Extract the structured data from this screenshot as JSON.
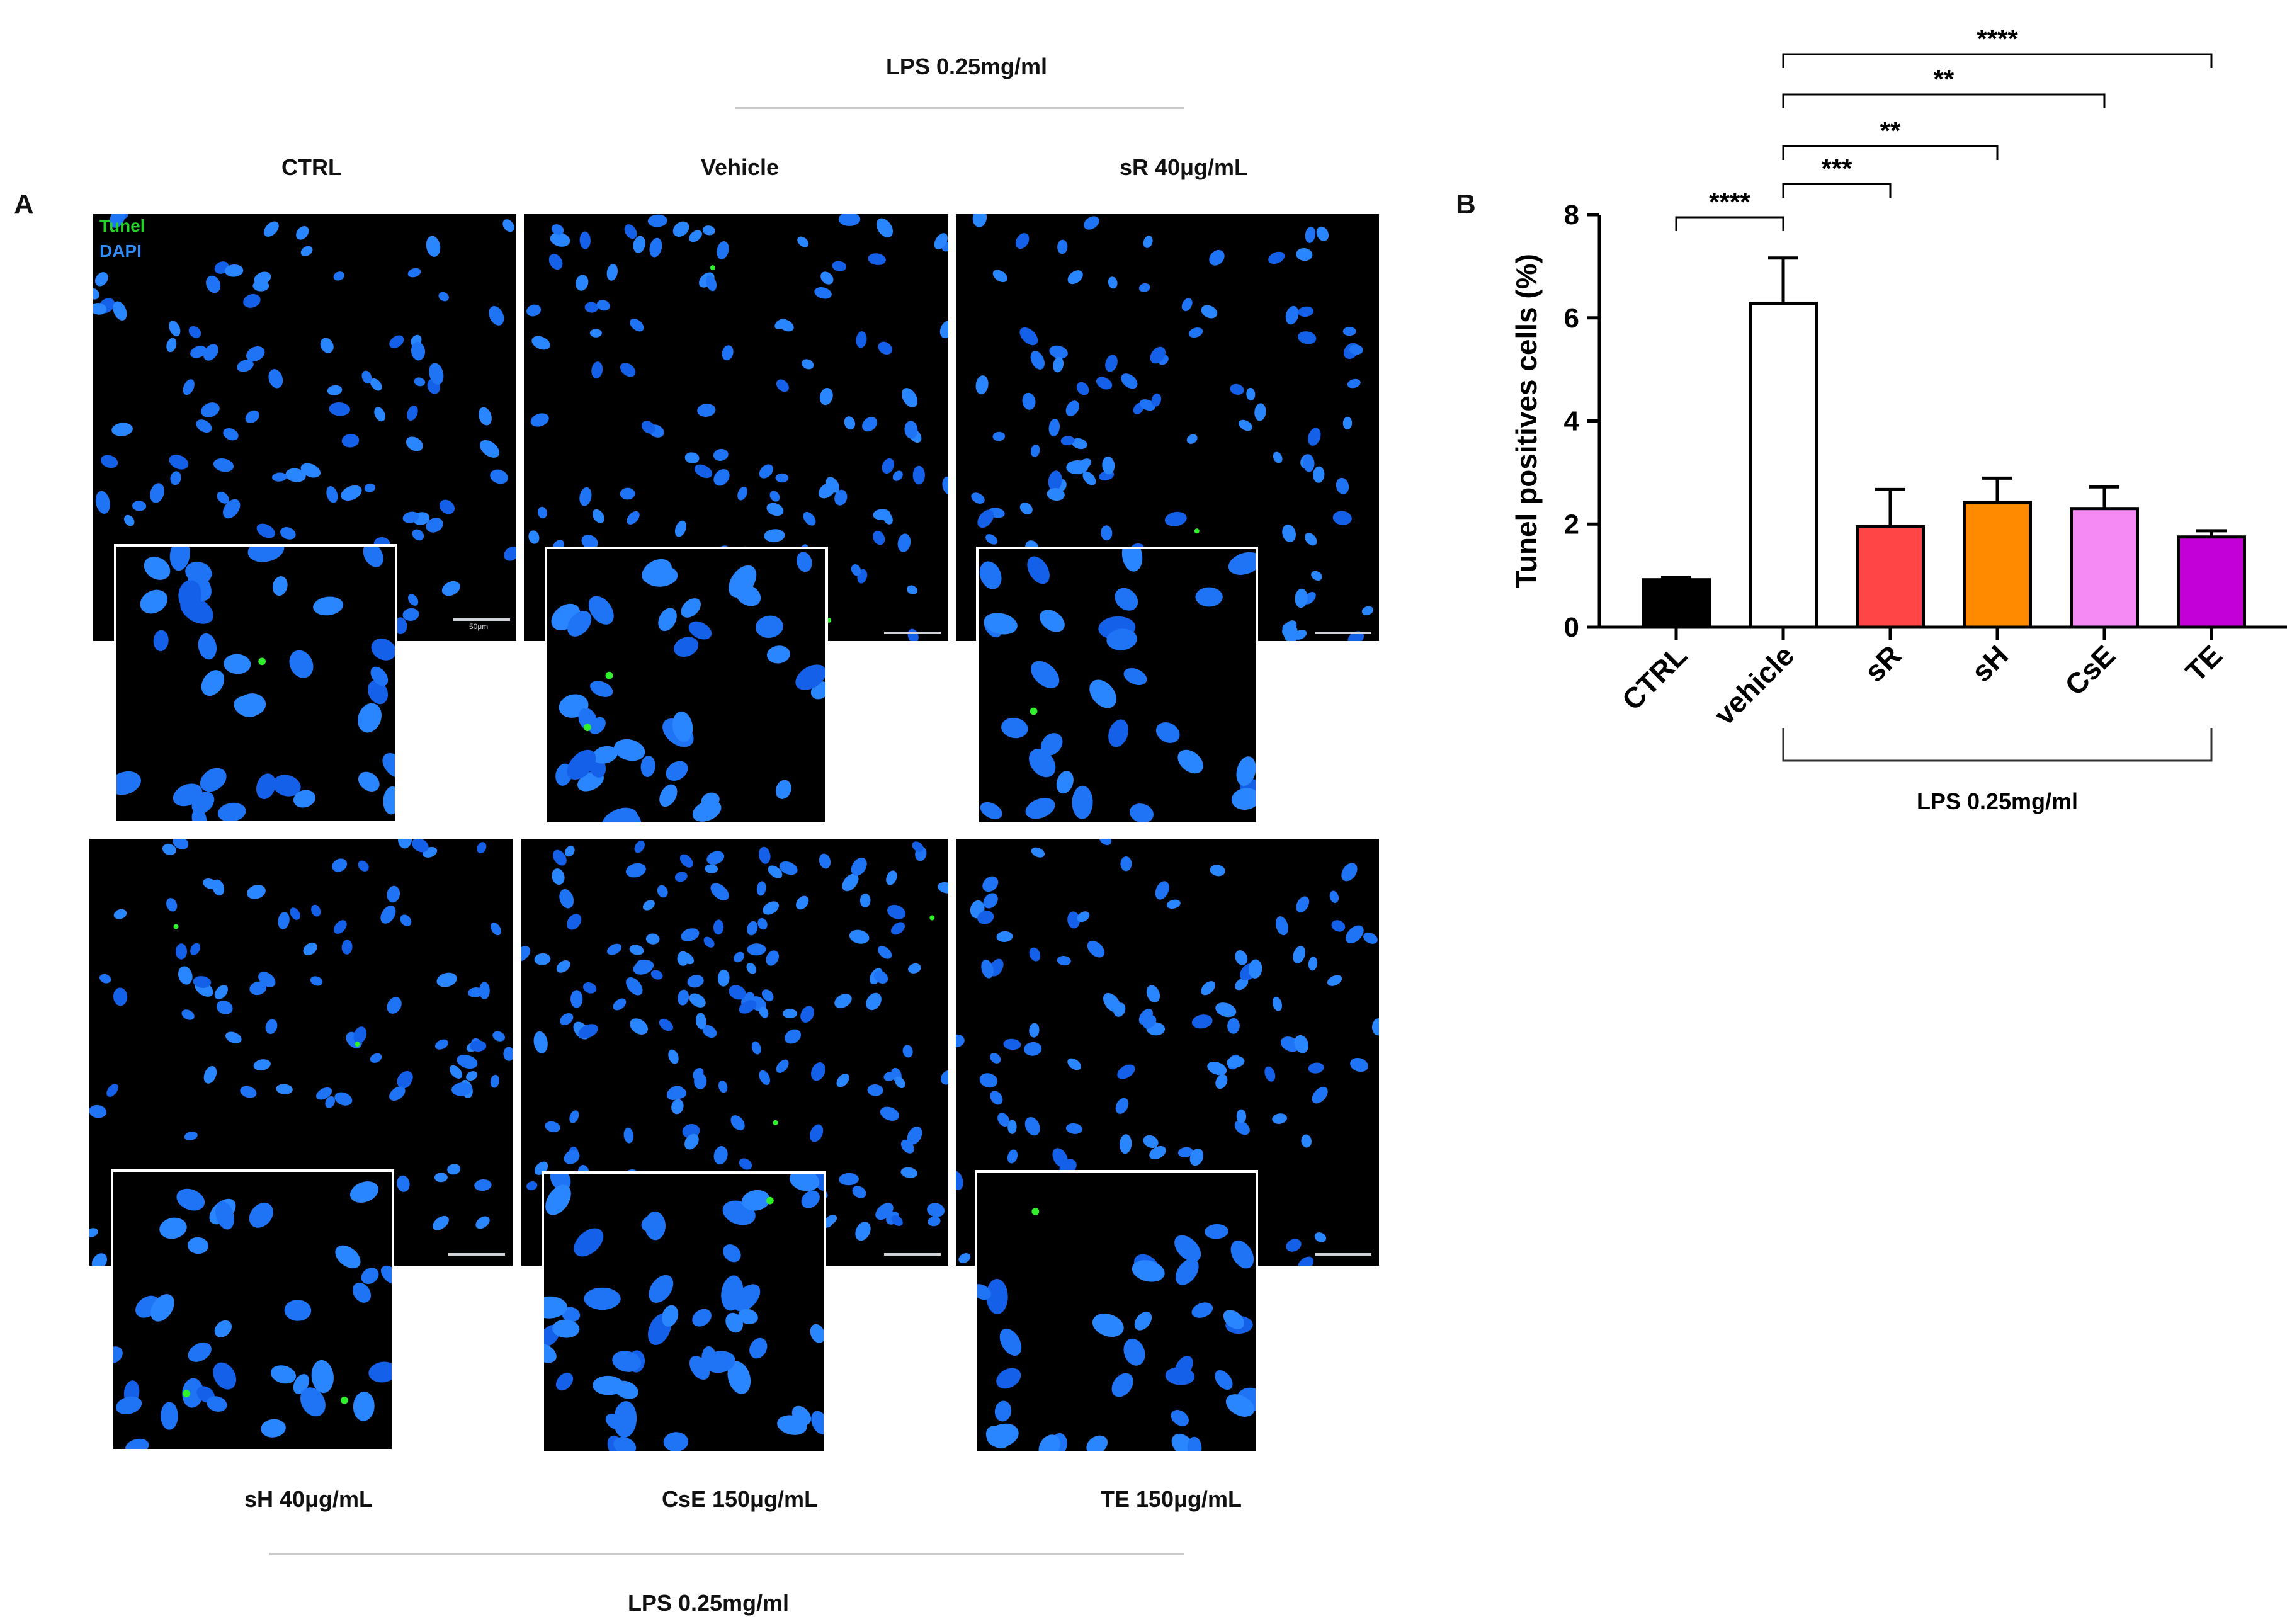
{
  "panelA": {
    "letter": "A",
    "top_group_label": "LPS 0.25mg/ml",
    "bottom_group_label": "LPS 0.25mg/ml",
    "legend": {
      "tunel": "Tunel",
      "dapi": "DAPI"
    },
    "scale_text": "50μm",
    "top_labels": [
      "CTRL",
      "Vehicle",
      "sR 40μg/mL"
    ],
    "bottom_labels": [
      "sH 40μg/mL",
      "CsE 150μg/mL",
      "TE 150μg/mL"
    ]
  },
  "panelB": {
    "letter": "B",
    "group_label": "LPS 0.25mg/ml"
  },
  "chart_data": {
    "type": "bar",
    "title": "",
    "xlabel": "",
    "ylabel": "Tunel positives cells (%)",
    "categories": [
      "CTRL",
      "vehicle",
      "sR",
      "sH",
      "CsE",
      "TE"
    ],
    "values": [
      0.92,
      6.28,
      1.95,
      2.42,
      2.3,
      1.75
    ],
    "errors": [
      0.05,
      0.88,
      0.72,
      0.47,
      0.42,
      0.12
    ],
    "colors": [
      "#000000",
      "#ffffff",
      "#ff4545",
      "#ff8a00",
      "#f58af5",
      "#c400d8"
    ],
    "ylim": [
      0,
      8
    ],
    "yticks": [
      0,
      2,
      4,
      6,
      8
    ],
    "significance": [
      {
        "from": "CTRL",
        "to": "vehicle",
        "label": "****"
      },
      {
        "from": "vehicle",
        "to": "sR",
        "label": "***"
      },
      {
        "from": "vehicle",
        "to": "sH",
        "label": "**"
      },
      {
        "from": "vehicle",
        "to": "CsE",
        "label": "**"
      },
      {
        "from": "vehicle",
        "to": "TE",
        "label": "****"
      }
    ]
  }
}
